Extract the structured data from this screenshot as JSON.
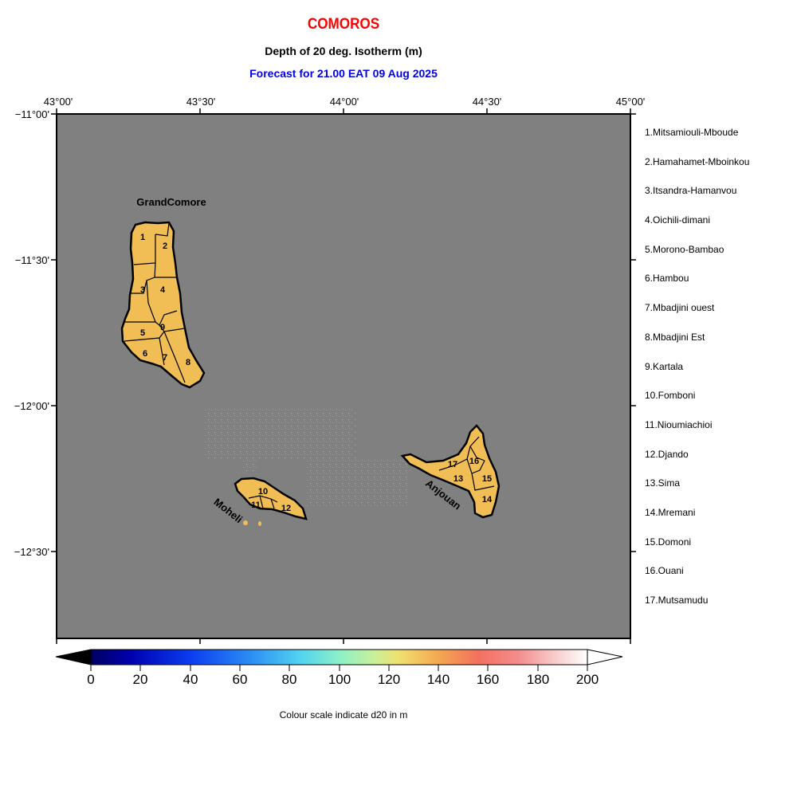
{
  "header": {
    "title": "COMOROS",
    "subtitle": "Depth of 20 deg. Isotherm (m)",
    "forecast": "Forecast for  21.00 EAT 09 Aug 2025"
  },
  "axes": {
    "x_ticks": [
      "43°00'",
      "43°30'",
      "44°00'",
      "44°30'",
      "45°00'"
    ],
    "y_ticks": [
      "−11°00'",
      "−11°30'",
      "−12°00'",
      "−12°30'"
    ]
  },
  "map_labels": {
    "grand_comore": "GrandComore",
    "moheli": "Moheli",
    "anjouan": "Anjouan"
  },
  "region_numbers": [
    "1",
    "2",
    "3",
    "4",
    "5",
    "6",
    "7",
    "8",
    "9",
    "10",
    "11",
    "12",
    "13",
    "14",
    "15",
    "16",
    "17"
  ],
  "regions": [
    "1.Mitsamiouli-Mboude",
    "2.Hamahamet-Mboinkou",
    "3.Itsandra-Hamanvou",
    "4.Oichili-dimani",
    "5.Morono-Bambao",
    "6.Hambou",
    "7.Mbadjini ouest",
    "8.Mbadjini Est",
    "9.Kartala",
    "10.Fomboni",
    "11.Nioumiachioi",
    "12.Djando",
    "13.Sima",
    "14.Mremani",
    "15.Domoni",
    "16.Ouani",
    "17.Mutsamudu"
  ],
  "colorbar": {
    "ticks": [
      "0",
      "20",
      "40",
      "60",
      "80",
      "100",
      "120",
      "140",
      "160",
      "180",
      "200"
    ],
    "min": 0,
    "max": 200,
    "caption": "Colour scale indicate d20 in m"
  },
  "colors": {
    "sea_background": "#808080",
    "land_fill": "#f0be55",
    "title": "#ff0000",
    "forecast_text": "#0000ee"
  }
}
